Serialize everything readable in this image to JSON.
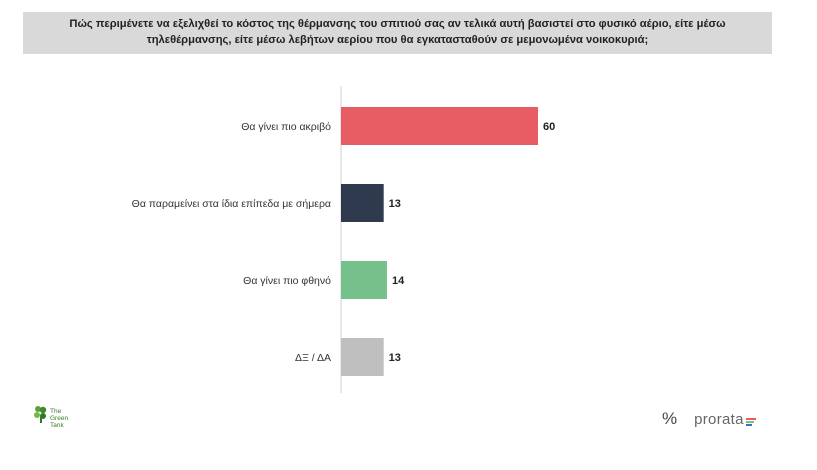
{
  "header": {
    "question": "Πώς περιμένετε να εξελιχθεί το κόστος της θέρμανσης του σπιτιού σας αν τελικά αυτή βασιστεί στο φυσικό αέριο, είτε μέσω τηλεθέρμανσης, είτε μέσω λεβήτων αερίου που θα εγκατασταθούν σε μεμονωμένα νοικοκυριά;"
  },
  "chart_data": {
    "type": "bar",
    "orientation": "horizontal",
    "categories": [
      "Θα γίνει πιο ακριβό",
      "Θα παραμείνει στα ίδια επίπεδα με σήμερα",
      "Θα γίνει πιο φθηνό",
      "ΔΞ / ΔΑ"
    ],
    "values": [
      60,
      13,
      14,
      13
    ],
    "colors": [
      "#e85d63",
      "#2f3a4f",
      "#76c08c",
      "#bfbfbf"
    ],
    "title": "",
    "xlabel": "",
    "ylabel": "",
    "xlim": [
      0,
      60
    ],
    "grid": false,
    "legend": "none"
  },
  "logos": {
    "left_text": [
      "The",
      "Green",
      "Tank"
    ],
    "left_icon": "green-tank-leaf-logo",
    "right_symbol": "%",
    "right_text": "prorata",
    "right_icon_colors": [
      "#e85d63",
      "#76c08c",
      "#3b6fb6"
    ]
  }
}
